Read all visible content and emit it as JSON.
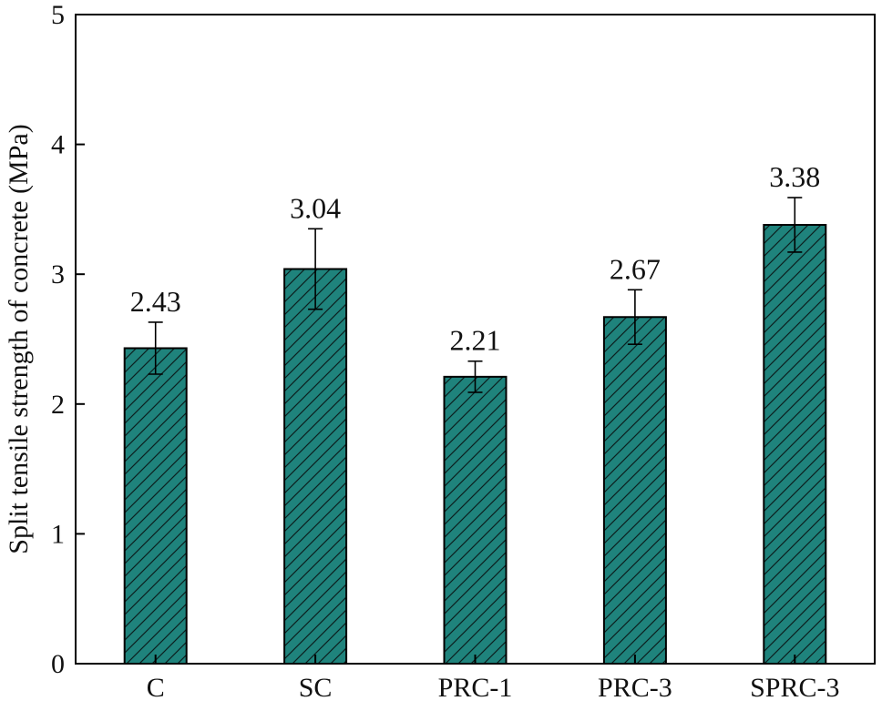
{
  "chart_data": {
    "type": "bar",
    "categories": [
      "C",
      "SC",
      "PRC-1",
      "PRC-3",
      "SPRC-3"
    ],
    "values": [
      2.43,
      3.04,
      2.21,
      2.67,
      3.38
    ],
    "errors": [
      0.2,
      0.31,
      0.12,
      0.21,
      0.21
    ],
    "value_labels": [
      "2.43",
      "3.04",
      "2.21",
      "2.67",
      "3.38"
    ],
    "ylabel": "Split tensile strength of concrete (MPa)",
    "xlabel": "",
    "ylim": [
      0,
      5
    ],
    "yticks": [
      0,
      1,
      2,
      3,
      4,
      5
    ],
    "ytick_labels": [
      "0",
      "1",
      "2",
      "3",
      "4",
      "5"
    ],
    "grid": false,
    "bar_color": "#1f837c",
    "hatch": "diagonal"
  }
}
